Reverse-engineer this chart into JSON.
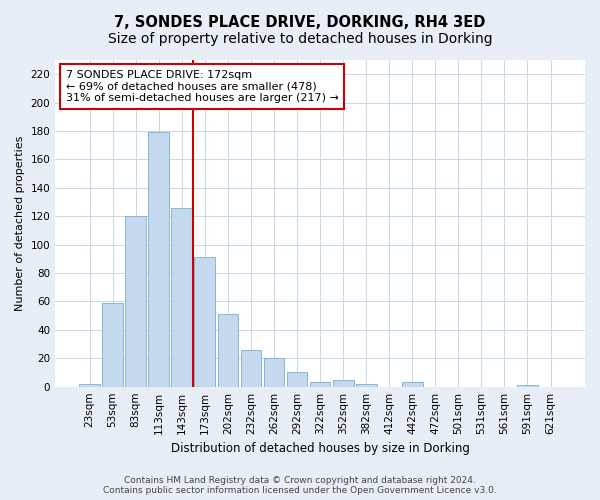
{
  "title": "7, SONDES PLACE DRIVE, DORKING, RH4 3ED",
  "subtitle": "Size of property relative to detached houses in Dorking",
  "xlabel": "Distribution of detached houses by size in Dorking",
  "ylabel": "Number of detached properties",
  "categories": [
    "23sqm",
    "53sqm",
    "83sqm",
    "113sqm",
    "143sqm",
    "173sqm",
    "202sqm",
    "232sqm",
    "262sqm",
    "292sqm",
    "322sqm",
    "352sqm",
    "382sqm",
    "412sqm",
    "442sqm",
    "472sqm",
    "501sqm",
    "531sqm",
    "561sqm",
    "591sqm",
    "621sqm"
  ],
  "values": [
    2,
    59,
    120,
    179,
    126,
    91,
    51,
    26,
    20,
    10,
    3,
    5,
    2,
    0,
    3,
    0,
    0,
    0,
    0,
    1,
    0
  ],
  "bar_color": "#c5d9ee",
  "bar_edge_color": "#7aafd4",
  "vline_color": "#cc0000",
  "vline_x_index": 5,
  "annotation_text": "7 SONDES PLACE DRIVE: 172sqm\n← 69% of detached houses are smaller (478)\n31% of semi-detached houses are larger (217) →",
  "annotation_box_facecolor": "#ffffff",
  "annotation_box_edgecolor": "#cc0000",
  "ylim": [
    0,
    230
  ],
  "yticks": [
    0,
    20,
    40,
    60,
    80,
    100,
    120,
    140,
    160,
    180,
    200,
    220
  ],
  "plot_bg_color": "#ffffff",
  "fig_bg_color": "#e8eef5",
  "grid_color": "#c8d8e8",
  "footer_text": "Contains HM Land Registry data © Crown copyright and database right 2024.\nContains public sector information licensed under the Open Government Licence v3.0.",
  "title_fontsize": 10.5,
  "xlabel_fontsize": 8.5,
  "ylabel_fontsize": 8,
  "tick_fontsize": 7.5,
  "annotation_fontsize": 8,
  "footer_fontsize": 6.5
}
